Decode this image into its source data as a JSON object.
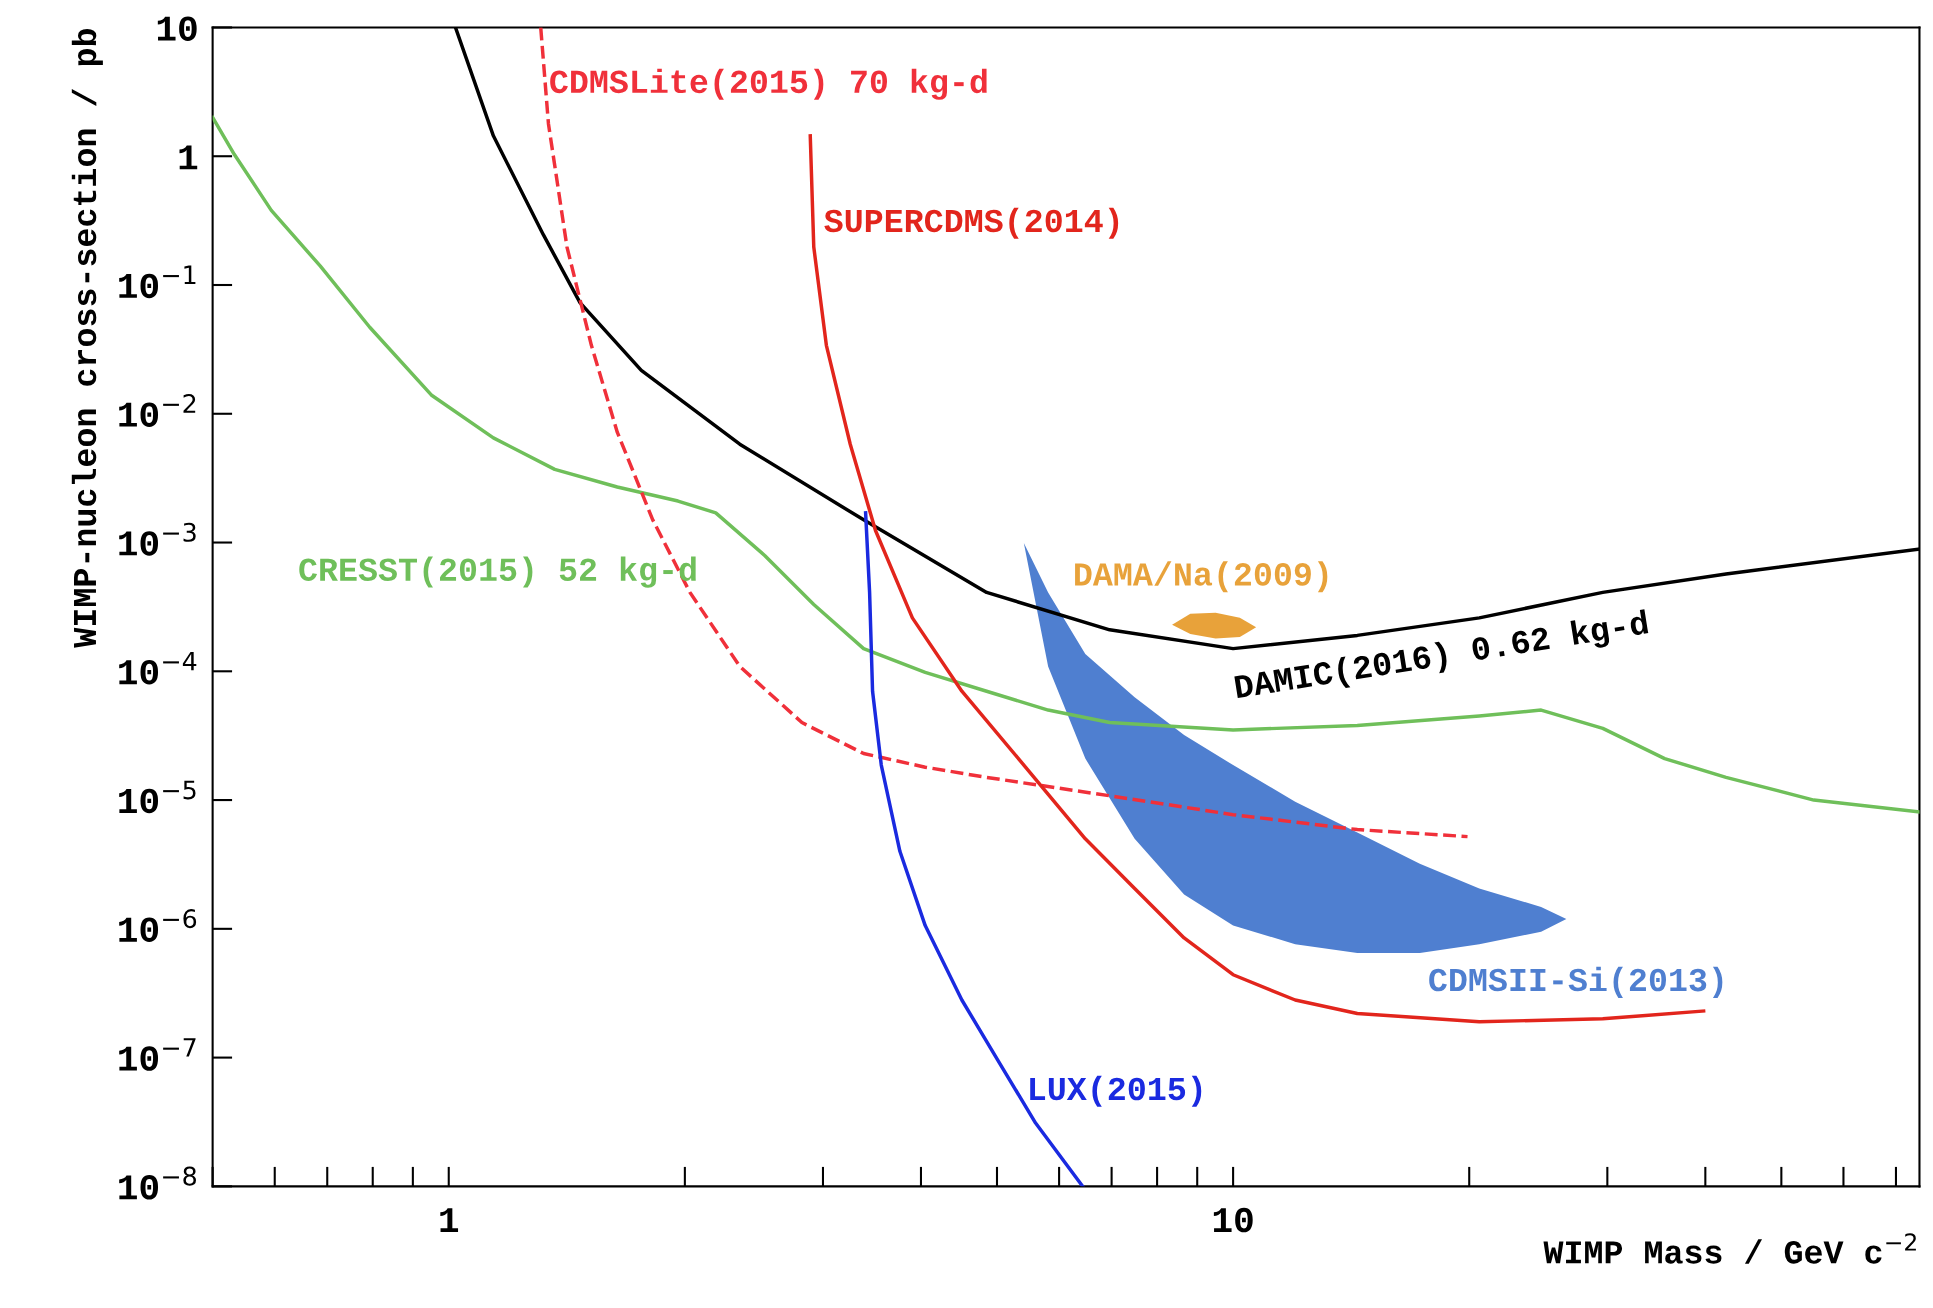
{
  "chart_data": {
    "type": "line",
    "xlabel": "WIMP Mass / GeV c$^{−2}$",
    "ylabel": "WIMP-nucleon cross-section / pb",
    "log": "xy",
    "marker": "none",
    "xlim": [
      0.5,
      75
    ],
    "ylim": [
      1e-08,
      10
    ],
    "xticks": [
      1,
      10
    ],
    "yticks": [
      {
        "value": 10,
        "label": "10"
      },
      {
        "value": 1,
        "label": "1"
      },
      {
        "value": 0.1,
        "label": "10$^{−1}$"
      },
      {
        "value": 0.01,
        "label": "10$^{−2}$"
      },
      {
        "value": 0.001,
        "label": "10$^{−3}$"
      },
      {
        "value": 0.0001,
        "label": "10$^{−4}$"
      },
      {
        "value": 1e-05,
        "label": "10$^{−5}$"
      },
      {
        "value": 1e-06,
        "label": "10$^{−6}$"
      },
      {
        "value": 1e-07,
        "label": "10$^{−7}$"
      },
      {
        "value": 1e-08,
        "label": "10$^{−8}$"
      }
    ],
    "series": [
      {
        "name": "CRESST(2015) 52 kg-d",
        "color": "#6fbf5a",
        "line_style": "solid",
        "x": [
          0.5,
          0.533,
          0.594,
          0.686,
          0.793,
          0.95,
          1.14,
          1.365,
          1.64,
          1.96,
          2.19,
          2.53,
          2.92,
          3.38,
          4.05,
          4.85,
          5.81,
          6.96,
          10,
          14.4,
          20.6,
          24.7,
          29.6,
          35.5,
          42.5,
          55,
          75
        ],
        "values": [
          2.0,
          1.03,
          0.38,
          0.14,
          0.047,
          0.014,
          0.0065,
          0.0037,
          0.0027,
          0.0021,
          0.0017,
          0.00079,
          0.00033,
          0.00015,
          9.8e-05,
          7e-05,
          5e-05,
          4e-05,
          3.5e-05,
          3.8e-05,
          4.5e-05,
          5e-05,
          3.6e-05,
          2.1e-05,
          1.5e-05,
          1e-05,
          8.1e-06
        ]
      },
      {
        "name": "DAMIC(2016) 0.62 kg-d",
        "color": "#000000",
        "line_style": "solid",
        "x": [
          1.02,
          1.14,
          1.32,
          1.47,
          1.76,
          2.35,
          3.38,
          4.85,
          6.96,
          10,
          14.4,
          20.6,
          29.6,
          42.5,
          75
        ],
        "values": [
          10,
          1.44,
          0.246,
          0.073,
          0.0217,
          0.0058,
          0.0015,
          0.00041,
          0.00021,
          0.00015,
          0.00019,
          0.00026,
          0.00041,
          0.00057,
          0.00089
        ]
      },
      {
        "name": "CDMSLite(2015) 70 kg-d",
        "color": "#f0303a",
        "line_style": "dashed",
        "x": [
          1.31,
          1.34,
          1.415,
          1.52,
          1.64,
          1.82,
          2.03,
          2.35,
          2.82,
          3.38,
          4.05,
          4.85,
          6.96,
          10,
          14.4,
          19.9
        ],
        "values": [
          10,
          1.79,
          0.197,
          0.034,
          0.0072,
          0.0015,
          0.00041,
          0.000109,
          4e-05,
          2.3e-05,
          1.8e-05,
          1.5e-05,
          1.08e-05,
          7.7e-06,
          5.9e-06,
          5.2e-06
        ]
      },
      {
        "name": "SUPERCDMS(2014)",
        "color": "#e2251c",
        "line_style": "solid",
        "x": [
          2.89,
          2.92,
          3.03,
          3.25,
          3.5,
          3.9,
          4.51,
          5.41,
          6.48,
          7.49,
          8.66,
          10,
          12.0,
          14.4,
          20.6,
          29.6,
          39.8
        ],
        "values": [
          1.44,
          0.197,
          0.034,
          0.0058,
          0.00124,
          0.00026,
          7e-05,
          1.87e-05,
          5e-06,
          2.06e-06,
          8.5e-07,
          4.4e-07,
          2.8e-07,
          2.2e-07,
          1.9e-07,
          2e-07,
          2.3e-07
        ]
      },
      {
        "name": "LUX(2015)",
        "color": "#1a2ae0",
        "line_style": "solid",
        "x": [
          3.4,
          3.44,
          3.47,
          3.56,
          3.76,
          4.05,
          4.51,
          5.02,
          5.6,
          6.43
        ],
        "values": [
          0.0017,
          0.00041,
          7e-05,
          1.87e-05,
          4e-06,
          1.06e-06,
          2.8e-07,
          9.4e-08,
          3.1e-08,
          1e-08
        ]
      },
      {
        "name": "CDMSII-Si(2013)",
        "type": "area",
        "color": "#4f7fd0",
        "x": [
          5.41,
          5.81,
          6.48,
          7.49,
          8.66,
          10,
          12.0,
          14.4,
          17.3,
          20.6,
          24.7,
          26.6,
          24.7,
          20.6,
          17.3,
          14.4,
          12.0,
          10,
          8.66,
          7.49,
          6.48,
          5.81
        ],
        "values": [
          0.00099,
          0.00041,
          0.000136,
          6.3e-05,
          3.2e-05,
          1.87e-05,
          9.7e-06,
          5.6e-06,
          3.2e-06,
          2.06e-06,
          1.48e-06,
          1.19e-06,
          9.5e-07,
          7.6e-07,
          6.5e-07,
          6.5e-07,
          7.6e-07,
          1.06e-06,
          1.85e-06,
          5e-06,
          2.1e-05,
          0.000109
        ]
      },
      {
        "name": "DAMA/Na(2009)",
        "type": "area",
        "color": "#e8a23a",
        "x": [
          8.36,
          8.82,
          9.5,
          10.2,
          10.7,
          10.2,
          9.5,
          8.82
        ],
        "values": [
          0.00023,
          0.00028,
          0.000285,
          0.00026,
          0.00022,
          0.000185,
          0.00018,
          0.000195
        ]
      }
    ]
  }
}
